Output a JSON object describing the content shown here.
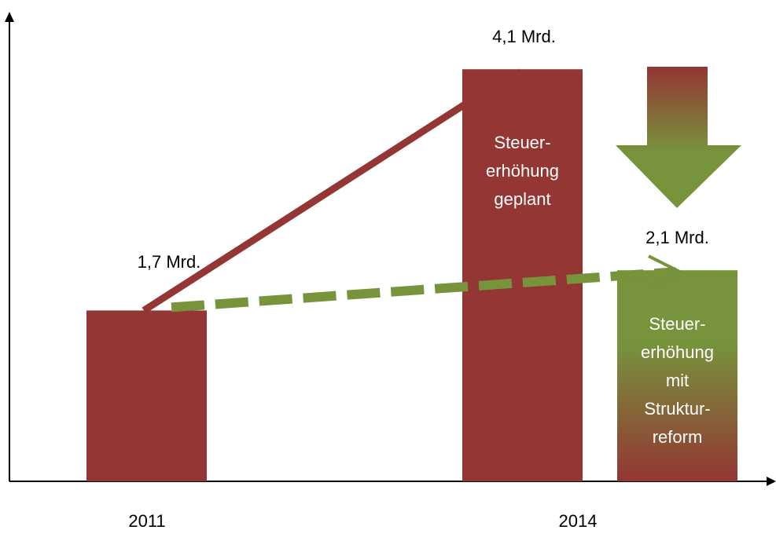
{
  "chart_data": {
    "type": "bar",
    "categories": [
      "2011",
      "2014",
      null
    ],
    "values": [
      1.7,
      4.1,
      2.1
    ],
    "value_labels": [
      "1,7 Mrd.",
      "4,1 Mrd.",
      "2,1 Mrd."
    ],
    "colors": [
      "#943634",
      "#943634",
      "#77933c"
    ],
    "bar_texts": [
      [],
      [
        "Steuer-",
        "erhöhung",
        "geplant"
      ],
      [
        "Steuer-",
        "erhöhung",
        "mit",
        "Struktur-",
        "reform"
      ]
    ]
  }
}
